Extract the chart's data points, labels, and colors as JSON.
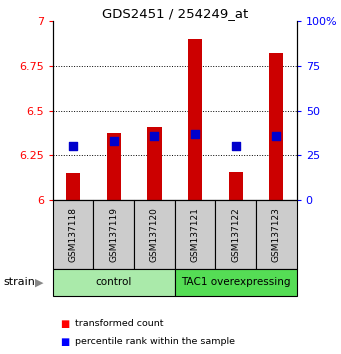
{
  "title": "GDS2451 / 254249_at",
  "samples": [
    "GSM137118",
    "GSM137119",
    "GSM137120",
    "GSM137121",
    "GSM137122",
    "GSM137123"
  ],
  "transformed_counts": [
    6.15,
    6.375,
    6.41,
    6.9,
    6.155,
    6.82
  ],
  "percentile_ranks": [
    30,
    33,
    36,
    37,
    30,
    36
  ],
  "groups": [
    {
      "label": "control",
      "start": 0,
      "end": 3,
      "color": "#aaeaaa"
    },
    {
      "label": "TAC1 overexpressing",
      "start": 3,
      "end": 6,
      "color": "#55dd55"
    }
  ],
  "ylim_left": [
    6.0,
    7.0
  ],
  "ylim_right": [
    0,
    100
  ],
  "yticks_left": [
    6.0,
    6.25,
    6.5,
    6.75,
    7.0
  ],
  "yticks_right": [
    0,
    25,
    50,
    75,
    100
  ],
  "ytick_labels_left": [
    "6",
    "6.25",
    "6.5",
    "6.75",
    "7"
  ],
  "ytick_labels_right": [
    "0",
    "25",
    "50",
    "75",
    "100%"
  ],
  "bar_color": "#cc0000",
  "dot_color": "#0000cc",
  "bar_width": 0.35,
  "dot_size": 30,
  "label_red": "transformed count",
  "label_blue": "percentile rank within the sample",
  "sample_row_color": "#cccccc",
  "grid_yticks": [
    6.25,
    6.5,
    6.75
  ]
}
